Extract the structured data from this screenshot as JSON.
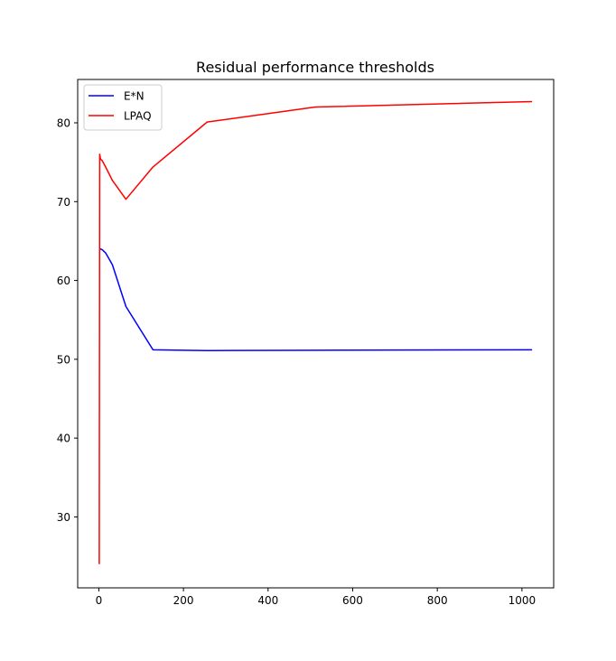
{
  "chart_data": {
    "type": "line",
    "title": "Residual performance thresholds",
    "xlabel": "",
    "ylabel": "",
    "xlim": [
      -50,
      1075
    ],
    "ylim": [
      21,
      85.5
    ],
    "xticks": [
      0,
      200,
      400,
      600,
      800,
      1000
    ],
    "yticks": [
      30,
      40,
      50,
      60,
      70,
      80
    ],
    "grid": false,
    "legend_position": "top-left",
    "series": [
      {
        "name": "E*N",
        "color": "#0000ff",
        "x": [
          1,
          2,
          4,
          8,
          16,
          32,
          64,
          128,
          256,
          512,
          1024
        ],
        "y": [
          64.0,
          64.0,
          64.0,
          63.9,
          63.5,
          62.0,
          56.7,
          51.2,
          51.1,
          51.15,
          51.2
        ]
      },
      {
        "name": "LPAQ",
        "color": "#ff0000",
        "x": [
          1,
          2,
          4,
          8,
          16,
          32,
          64,
          128,
          256,
          512,
          1024
        ],
        "y": [
          24.0,
          76.0,
          75.4,
          75.2,
          74.4,
          72.7,
          70.3,
          74.4,
          80.1,
          82.0,
          82.7
        ]
      }
    ]
  }
}
